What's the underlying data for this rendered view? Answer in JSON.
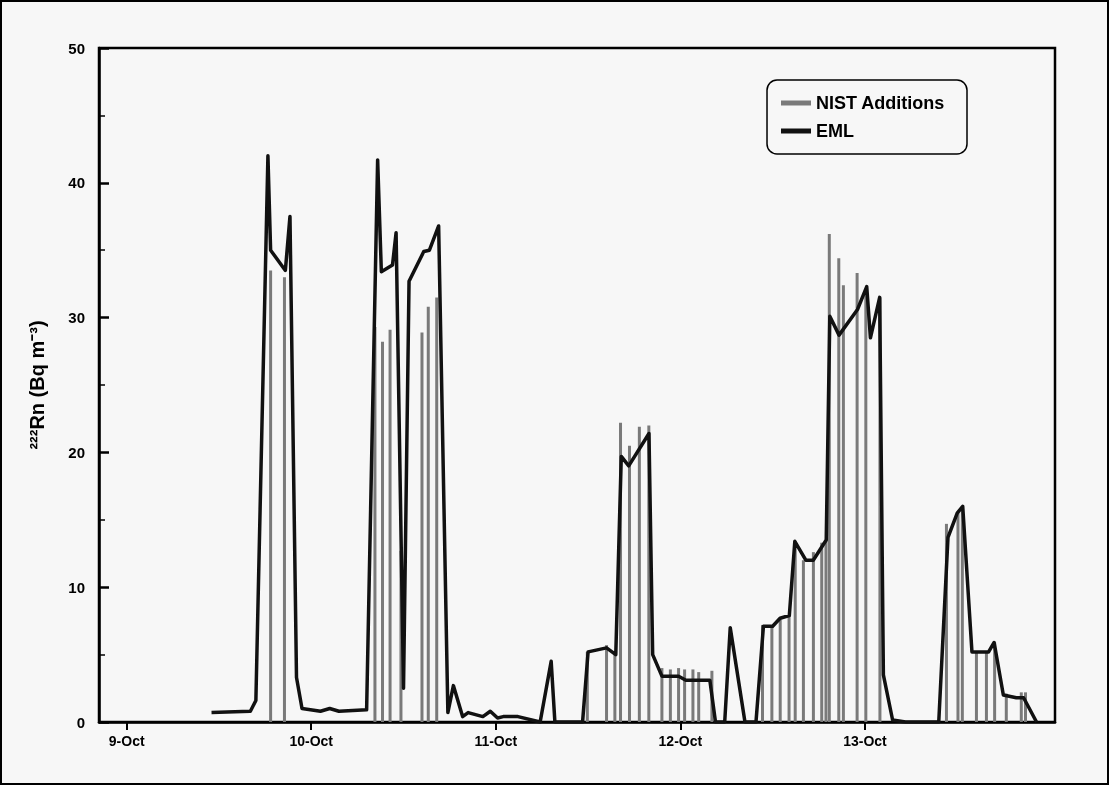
{
  "chart_data": {
    "type": "line",
    "ylabel": "²²²Rn (Bq m⁻³)",
    "xlim": [
      "--10-08T20:24",
      "--10-14T00:43"
    ],
    "xticks": [
      {
        "value": "--10-09",
        "label": "9-Oct"
      },
      {
        "value": "--10-10",
        "label": "10-Oct"
      },
      {
        "value": "--10-11",
        "label": "11-Oct"
      },
      {
        "value": "--10-12",
        "label": "12-Oct"
      },
      {
        "value": "--10-13",
        "label": "13-Oct"
      }
    ],
    "ylim": [
      0,
      50
    ],
    "yticks": [
      0,
      10,
      20,
      30,
      40,
      50
    ],
    "grid": false,
    "legend": "top right",
    "series": [
      {
        "name": "NIST Additions",
        "type": "bar",
        "color": "#7a7a7a",
        "x": [
          "--10-09T18:43",
          "--10-09T20:31",
          "--10-10T08:17",
          "--10-10T09:16",
          "--10-10T10:15",
          "--10-10T11:40",
          "--10-10T14:24",
          "--10-10T15:13",
          "--10-10T16:19",
          "--10-11T11:54",
          "--10-11T14:24",
          "--10-11T15:29",
          "--10-11T16:13",
          "--10-11T17:23",
          "--10-11T18:40",
          "--10-11T19:54",
          "--10-11T21:36",
          "--10-11T22:42",
          "--10-11T23:46",
          "--10-12T00:33",
          "--10-12T01:38",
          "--10-12T02:23",
          "--10-12T04:06",
          "--10-12T10:41",
          "--10-12T11:54",
          "--10-12T12:59",
          "--10-12T14:08",
          "--10-12T14:56",
          "--10-12T16:00",
          "--10-12T17:18",
          "--10-12T18:23",
          "--10-12T18:56",
          "--10-12T19:22",
          "--10-12T20:36",
          "--10-12T21:12",
          "--10-12T22:59",
          "--10-13T00:07",
          "--10-13T01:57",
          "--10-13T10:36",
          "--10-13T12:06",
          "--10-13T12:40",
          "--10-13T14:30",
          "--10-13T15:48",
          "--10-13T16:52",
          "--10-13T18:23",
          "--10-13T20:20",
          "--10-13T20:53"
        ],
        "values": [
          33.5,
          33.0,
          29.3,
          28.2,
          29.1,
          12.7,
          28.9,
          30.8,
          31.5,
          5.2,
          5.7,
          5.1,
          22.2,
          20.5,
          21.9,
          22.0,
          4.0,
          3.9,
          4.0,
          3.9,
          3.9,
          3.7,
          3.8,
          7.2,
          7.1,
          7.6,
          7.9,
          13.4,
          12.0,
          12.6,
          13.3,
          13.5,
          36.2,
          34.4,
          32.4,
          33.3,
          32.0,
          31.5,
          14.7,
          15.6,
          16.0,
          5.2,
          5.2,
          5.9,
          2.1,
          2.2,
          2.2
        ]
      },
      {
        "name": "EML",
        "color": "#111111",
        "x": [
          "--10-09T11:02",
          "--10-09T16:05",
          "--10-09T16:48",
          "--10-09T18:22",
          "--10-09T18:43",
          "--10-09T20:38",
          "--10-09T21:14",
          "--10-09T22:05",
          "--10-09T22:48",
          "--10-10T01:12",
          "--10-10T02:24",
          "--10-10T03:36",
          "--10-10T07:12",
          "--10-10T08:38",
          "--10-10T09:07",
          "--10-10T10:34",
          "--10-10T11:02",
          "--10-10T12:00",
          "--10-10T12:43",
          "--10-10T14:38",
          "--10-10T15:22",
          "--10-10T16:34",
          "--10-10T17:46",
          "--10-10T18:29",
          "--10-10T19:41",
          "--10-10T20:24",
          "--10-10T22:19",
          "--10-10T23:17",
          "--10-11T00:14",
          "--10-11T00:58",
          "--10-11T02:53",
          "--10-11T05:46",
          "--10-11T07:12",
          "--10-11T07:41",
          "--10-11T11:17",
          "--10-11T12:00",
          "--10-11T14:24",
          "--10-11T15:36",
          "--10-11T16:19",
          "--10-11T17:17",
          "--10-11T19:55",
          "--10-11T20:24",
          "--10-11T21:36",
          "--10-11T23:46",
          "--10-12T00:43",
          "--10-12T03:50",
          "--10-12T04:34",
          "--10-12T05:46",
          "--10-12T06:29",
          "--10-12T08:24",
          "--10-12T09:50",
          "--10-12T10:48",
          "--10-12T12:00",
          "--10-12T12:58",
          "--10-12T14:10",
          "--10-12T14:53",
          "--10-12T16:19",
          "--10-12T17:17",
          "--10-12T18:58",
          "--10-12T19:26",
          "--10-12T20:38",
          "--10-12T23:02",
          "--10-13T00:14",
          "--10-13T00:43",
          "--10-13T01:55",
          "--10-13T02:24",
          "--10-13T03:36",
          "--10-13T05:17",
          "--10-13T09:36",
          "--10-13T10:48",
          "--10-13T12:00",
          "--10-13T12:43",
          "--10-13T13:55",
          "--10-13T16:05",
          "--10-13T16:48",
          "--10-13T18:00",
          "--10-13T19:41",
          "--10-13T20:38",
          "--10-13T22:19"
        ],
        "values": [
          0.7,
          0.8,
          1.6,
          42.0,
          35.0,
          33.5,
          37.5,
          3.3,
          1.0,
          0.8,
          1.0,
          0.8,
          0.9,
          41.7,
          33.4,
          33.9,
          36.3,
          2.5,
          32.7,
          34.9,
          35.0,
          36.8,
          0.7,
          2.7,
          0.4,
          0.7,
          0.4,
          0.8,
          0.3,
          0.4,
          0.4,
          0.0,
          4.5,
          0.0,
          0.0,
          5.2,
          5.5,
          5.0,
          19.7,
          19.0,
          21.4,
          5.0,
          3.4,
          3.4,
          3.1,
          3.1,
          0.0,
          0.0,
          7.0,
          0.0,
          0.0,
          7.1,
          7.1,
          7.7,
          7.9,
          13.4,
          12.0,
          12.0,
          13.5,
          30.1,
          28.7,
          30.6,
          32.3,
          28.5,
          31.5,
          3.5,
          0.15,
          0.0,
          0.0,
          13.7,
          15.5,
          16.0,
          5.2,
          5.2,
          5.9,
          2.0,
          1.8,
          1.8,
          0.0
        ]
      }
    ]
  }
}
